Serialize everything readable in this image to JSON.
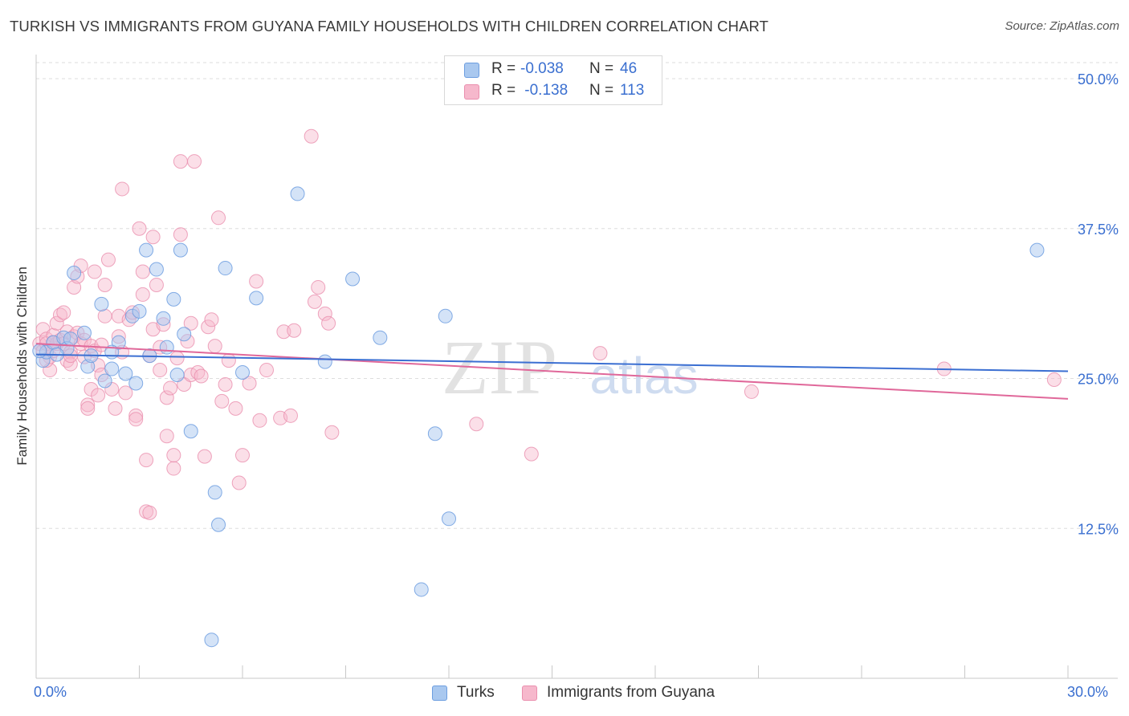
{
  "header": {
    "title": "TURKISH VS IMMIGRANTS FROM GUYANA FAMILY HOUSEHOLDS WITH CHILDREN CORRELATION CHART",
    "source": "Source: ZipAtlas.com"
  },
  "legend": {
    "rows": [
      {
        "r_label": "R =",
        "r_value": "-0.038",
        "n_label": "N =",
        "n_value": "46"
      },
      {
        "r_label": "R =",
        "r_value": " -0.138",
        "n_label": "N =",
        "n_value": "113"
      }
    ]
  },
  "bottom_legend": {
    "series1": "Turks",
    "series2": "Immigrants from Guyana"
  },
  "watermark": {
    "zip": "ZIP",
    "atlas": "atlas"
  },
  "colors": {
    "blue_fill": "#a9c8ef",
    "blue_stroke": "#6d9ee0",
    "blue_line": "#3b6fd2",
    "pink_fill": "#f6b8cc",
    "pink_stroke": "#ea8fae",
    "pink_line": "#e0689a",
    "tick_label": "#3a6fd0",
    "grid": "#dddddd"
  },
  "chart_data": {
    "type": "scatter",
    "title": "TURKISH VS IMMIGRANTS FROM GUYANA FAMILY HOUSEHOLDS WITH CHILDREN CORRELATION CHART",
    "xlabel": "",
    "ylabel": "Family Households with Children",
    "xlim": [
      0,
      30
    ],
    "ylim": [
      0,
      50
    ],
    "x_tick_labels": [
      "0.0%",
      "30.0%"
    ],
    "y_ticks": [
      12.5,
      25.0,
      37.5,
      50.0
    ],
    "y_tick_labels": [
      "12.5%",
      "25.0%",
      "37.5%",
      "50.0%"
    ],
    "series": [
      {
        "name": "Turks",
        "R": -0.038,
        "N": 46,
        "trend": {
          "x0": 0,
          "y0": 27.0,
          "x1": 30,
          "y1": 25.6
        },
        "points": [
          [
            0.2,
            26.5
          ],
          [
            0.3,
            27.2
          ],
          [
            0.5,
            28.0
          ],
          [
            0.8,
            28.4
          ],
          [
            0.9,
            27.5
          ],
          [
            1.1,
            33.8
          ],
          [
            1.4,
            28.8
          ],
          [
            1.5,
            26.0
          ],
          [
            1.6,
            26.9
          ],
          [
            1.9,
            31.2
          ],
          [
            2.0,
            24.8
          ],
          [
            2.2,
            25.8
          ],
          [
            2.4,
            28.0
          ],
          [
            2.6,
            25.4
          ],
          [
            2.8,
            30.2
          ],
          [
            2.9,
            24.6
          ],
          [
            3.0,
            30.6
          ],
          [
            3.2,
            35.7
          ],
          [
            3.3,
            26.9
          ],
          [
            3.5,
            34.1
          ],
          [
            3.7,
            30.0
          ],
          [
            3.8,
            27.6
          ],
          [
            4.0,
            31.6
          ],
          [
            4.1,
            25.3
          ],
          [
            4.2,
            35.7
          ],
          [
            4.3,
            28.7
          ],
          [
            4.5,
            20.6
          ],
          [
            5.1,
            3.2
          ],
          [
            5.2,
            15.5
          ],
          [
            5.3,
            12.8
          ],
          [
            5.5,
            34.2
          ],
          [
            6.0,
            25.5
          ],
          [
            6.4,
            31.7
          ],
          [
            7.6,
            40.4
          ],
          [
            8.4,
            26.4
          ],
          [
            9.2,
            33.3
          ],
          [
            10.0,
            28.4
          ],
          [
            11.2,
            7.4
          ],
          [
            11.6,
            20.4
          ],
          [
            11.9,
            30.2
          ],
          [
            12.0,
            13.3
          ],
          [
            29.1,
            35.7
          ],
          [
            0.1,
            27.3
          ],
          [
            0.6,
            27.0
          ],
          [
            1.0,
            28.3
          ],
          [
            2.2,
            27.2
          ]
        ]
      },
      {
        "name": "Immigrants from Guyana",
        "R": -0.138,
        "N": 113,
        "trend": {
          "x0": 0,
          "y0": 27.9,
          "x1": 30,
          "y1": 23.3
        },
        "points": [
          [
            0.1,
            27.9
          ],
          [
            0.2,
            27.3
          ],
          [
            0.2,
            29.1
          ],
          [
            0.3,
            28.3
          ],
          [
            0.3,
            27.9
          ],
          [
            0.4,
            26.8
          ],
          [
            0.4,
            25.7
          ],
          [
            0.5,
            28.6
          ],
          [
            0.5,
            27.3
          ],
          [
            0.6,
            29.6
          ],
          [
            0.6,
            27.9
          ],
          [
            0.7,
            28.2
          ],
          [
            0.7,
            30.3
          ],
          [
            0.8,
            30.5
          ],
          [
            0.8,
            27.9
          ],
          [
            0.9,
            28.9
          ],
          [
            0.9,
            26.5
          ],
          [
            1.0,
            27.2
          ],
          [
            1.0,
            26.2
          ],
          [
            1.1,
            32.6
          ],
          [
            1.1,
            28.5
          ],
          [
            1.2,
            33.5
          ],
          [
            1.2,
            28.8
          ],
          [
            1.3,
            27.9
          ],
          [
            1.3,
            34.4
          ],
          [
            1.4,
            28.2
          ],
          [
            1.4,
            26.8
          ],
          [
            1.5,
            22.8
          ],
          [
            1.5,
            22.5
          ],
          [
            1.6,
            24.1
          ],
          [
            1.6,
            27.7
          ],
          [
            1.7,
            33.9
          ],
          [
            1.7,
            27.3
          ],
          [
            1.8,
            26.1
          ],
          [
            1.8,
            23.6
          ],
          [
            1.9,
            27.8
          ],
          [
            1.9,
            25.3
          ],
          [
            2.0,
            32.8
          ],
          [
            2.0,
            30.2
          ],
          [
            2.1,
            34.9
          ],
          [
            2.2,
            24.1
          ],
          [
            2.3,
            22.5
          ],
          [
            2.4,
            30.2
          ],
          [
            2.4,
            28.5
          ],
          [
            2.5,
            27.2
          ],
          [
            2.5,
            40.8
          ],
          [
            2.6,
            23.8
          ],
          [
            2.7,
            29.9
          ],
          [
            2.8,
            30.5
          ],
          [
            2.9,
            21.9
          ],
          [
            2.9,
            21.6
          ],
          [
            3.0,
            37.5
          ],
          [
            3.1,
            33.9
          ],
          [
            3.1,
            32.0
          ],
          [
            3.2,
            13.9
          ],
          [
            3.2,
            18.2
          ],
          [
            3.3,
            13.8
          ],
          [
            3.3,
            26.9
          ],
          [
            3.4,
            36.8
          ],
          [
            3.4,
            29.1
          ],
          [
            3.5,
            32.8
          ],
          [
            3.6,
            27.6
          ],
          [
            3.6,
            25.7
          ],
          [
            3.7,
            29.5
          ],
          [
            3.8,
            23.4
          ],
          [
            3.8,
            20.2
          ],
          [
            3.9,
            24.2
          ],
          [
            4.0,
            17.5
          ],
          [
            4.0,
            18.6
          ],
          [
            4.1,
            26.7
          ],
          [
            4.2,
            43.1
          ],
          [
            4.2,
            37.0
          ],
          [
            4.3,
            24.5
          ],
          [
            4.4,
            28.1
          ],
          [
            4.5,
            25.3
          ],
          [
            4.5,
            29.6
          ],
          [
            4.6,
            43.1
          ],
          [
            4.7,
            25.5
          ],
          [
            4.8,
            25.2
          ],
          [
            4.9,
            18.5
          ],
          [
            5.0,
            29.3
          ],
          [
            5.1,
            29.9
          ],
          [
            5.2,
            27.7
          ],
          [
            5.3,
            38.4
          ],
          [
            5.4,
            23.1
          ],
          [
            5.5,
            24.5
          ],
          [
            5.6,
            26.5
          ],
          [
            5.8,
            22.5
          ],
          [
            5.9,
            16.3
          ],
          [
            6.0,
            18.6
          ],
          [
            6.2,
            24.6
          ],
          [
            6.4,
            33.1
          ],
          [
            6.5,
            21.5
          ],
          [
            6.7,
            25.7
          ],
          [
            7.1,
            21.7
          ],
          [
            7.2,
            28.9
          ],
          [
            7.4,
            21.9
          ],
          [
            7.5,
            29.0
          ],
          [
            8.0,
            45.2
          ],
          [
            8.1,
            31.4
          ],
          [
            8.2,
            32.6
          ],
          [
            8.4,
            30.4
          ],
          [
            8.5,
            29.6
          ],
          [
            8.6,
            20.5
          ],
          [
            12.8,
            21.2
          ],
          [
            14.4,
            18.7
          ],
          [
            16.4,
            27.1
          ],
          [
            20.8,
            23.9
          ],
          [
            26.4,
            25.8
          ],
          [
            29.6,
            24.9
          ],
          [
            0.3,
            26.5
          ],
          [
            1.0,
            26.9
          ],
          [
            0.5,
            28.0
          ]
        ]
      }
    ]
  }
}
